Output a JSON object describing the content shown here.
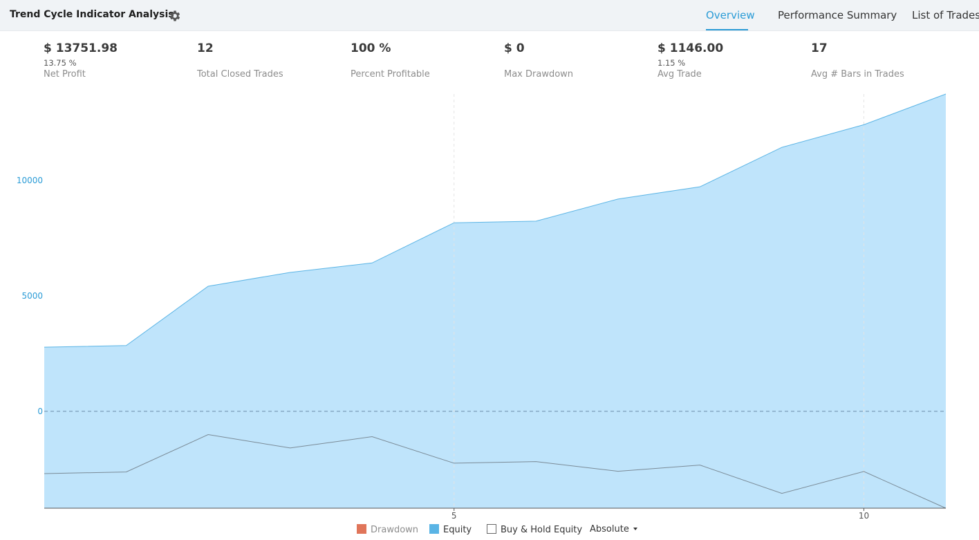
{
  "header": {
    "title": "Trend Cycle Indicator Analysis",
    "settings_icon": "gear-icon",
    "tabs": [
      {
        "label": "Overview",
        "active": true
      },
      {
        "label": "Performance Summary",
        "active": false
      },
      {
        "label": "List of Trades",
        "active": false
      }
    ]
  },
  "stats": [
    {
      "value": "$ 13751.98",
      "sub": "13.75 %",
      "label": "Net Profit"
    },
    {
      "value": "12",
      "sub": "",
      "label": "Total Closed Trades"
    },
    {
      "value": "100 %",
      "sub": "",
      "label": "Percent Profitable"
    },
    {
      "value": "$ 0",
      "sub": "",
      "label": "Max Drawdown"
    },
    {
      "value": "$ 1146.00",
      "sub": "1.15 %",
      "label": "Avg Trade"
    },
    {
      "value": "17",
      "sub": "",
      "label": "Avg # Bars in Trades"
    }
  ],
  "legend": {
    "drawdown": "Drawdown",
    "equity": "Equity",
    "buy_hold": "Buy & Hold Equity",
    "mode": "Absolute"
  },
  "colors": {
    "accent": "#2a9bd6",
    "equity_fill": "#bfe4fb",
    "equity_line": "#5ab4e5",
    "drawdown": "#e0755a",
    "buy_hold_line": "#7a8a96",
    "axis_label": "#2a9bd6"
  },
  "chart_data": {
    "type": "area",
    "x": [
      0,
      1,
      2,
      3,
      4,
      5,
      6,
      7,
      8,
      9,
      10,
      11
    ],
    "x_ticks": [
      5,
      10
    ],
    "y_ticks": [
      0,
      5000,
      10000
    ],
    "ylim": [
      -4200,
      13750
    ],
    "series": [
      {
        "name": "Equity",
        "values": [
          2780,
          2850,
          5420,
          6020,
          6430,
          8170,
          8240,
          9200,
          9730,
          11440,
          12420,
          13750
        ]
      },
      {
        "name": "Buy & Hold Equity",
        "values": [
          -2700,
          -2630,
          -1010,
          -1590,
          -1100,
          -2250,
          -2180,
          -2600,
          -2330,
          -3560,
          -2610,
          -4200
        ]
      }
    ]
  }
}
